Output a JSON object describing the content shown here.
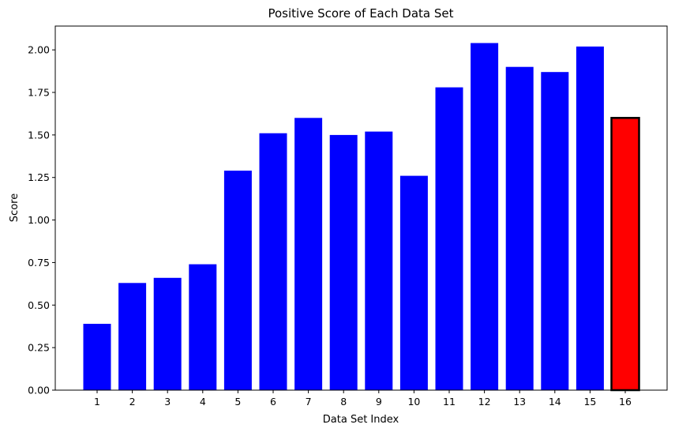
{
  "chart_data": {
    "type": "bar",
    "title": "Positive Score of Each Data Set",
    "xlabel": "Data Set Index",
    "ylabel": "Score",
    "categories": [
      "1",
      "2",
      "3",
      "4",
      "5",
      "6",
      "7",
      "8",
      "9",
      "10",
      "11",
      "12",
      "13",
      "14",
      "15",
      "16"
    ],
    "values": [
      0.39,
      0.63,
      0.66,
      0.74,
      1.29,
      1.51,
      1.6,
      1.5,
      1.52,
      1.26,
      1.78,
      2.04,
      1.9,
      1.87,
      2.02,
      1.6
    ],
    "ylim": [
      0,
      2.14
    ],
    "yticks": [
      "0.00",
      "0.25",
      "0.50",
      "0.75",
      "1.00",
      "1.25",
      "1.50",
      "1.75",
      "2.00"
    ],
    "grid": false,
    "colors": {
      "bar": "#0000ff",
      "highlight": "#ff0000",
      "highlight_edge": "#000000"
    },
    "highlight_index": 15
  }
}
